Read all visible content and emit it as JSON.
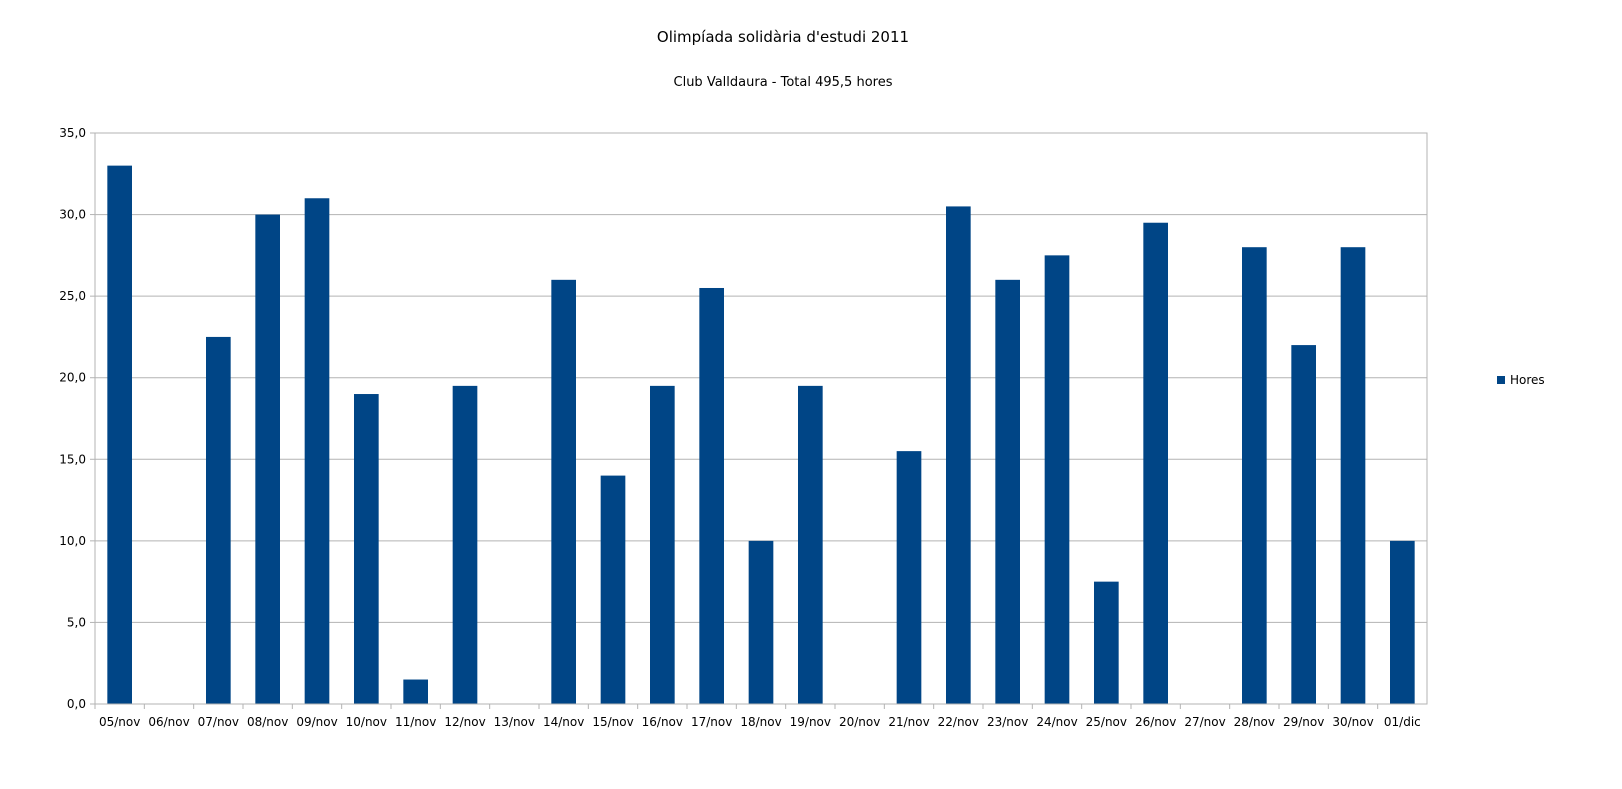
{
  "chart_data": {
    "type": "bar",
    "title": "Olimpíada solidària d'estudi 2011",
    "subtitle": "Club Valldaura - Total  495,5 hores",
    "xlabel": "",
    "ylabel": "",
    "ylim": [
      0,
      35
    ],
    "yticks": [
      "0,0",
      "5,0",
      "10,0",
      "15,0",
      "20,0",
      "25,0",
      "30,0",
      "35,0"
    ],
    "grid": true,
    "legend_position": "right",
    "categories": [
      "05/nov",
      "06/nov",
      "07/nov",
      "08/nov",
      "09/nov",
      "10/nov",
      "11/nov",
      "12/nov",
      "13/nov",
      "14/nov",
      "15/nov",
      "16/nov",
      "17/nov",
      "18/nov",
      "19/nov",
      "20/nov",
      "21/nov",
      "22/nov",
      "23/nov",
      "24/nov",
      "25/nov",
      "26/nov",
      "27/nov",
      "28/nov",
      "29/nov",
      "30/nov",
      "01/dic"
    ],
    "series": [
      {
        "name": "Hores",
        "color": "#004586",
        "values": [
          33,
          0,
          22.5,
          30,
          31,
          19,
          1.5,
          19.5,
          0,
          26,
          14,
          19.5,
          25.5,
          10,
          19.5,
          0,
          15.5,
          30.5,
          26,
          27.5,
          7.5,
          29.5,
          0,
          28,
          22,
          28,
          10
        ]
      }
    ]
  }
}
